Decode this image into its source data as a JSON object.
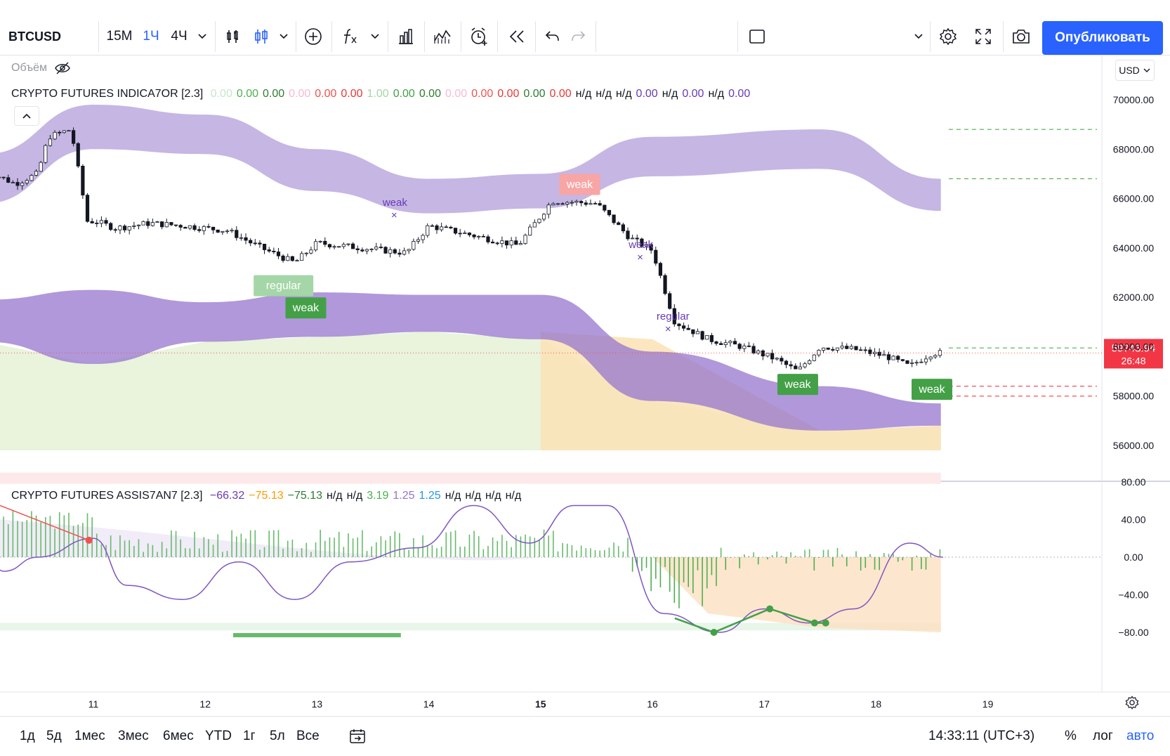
{
  "toolbar": {
    "symbol": "BTCUSD",
    "intervals": [
      {
        "label": "15M",
        "active": false
      },
      {
        "label": "1Ч",
        "active": true
      },
      {
        "label": "4Ч",
        "active": false
      }
    ],
    "publish_label": "Опубликовать",
    "icons": [
      "chevron-down-icon",
      "candles-icon",
      "chart-type-icon",
      "chevron-down-icon",
      "add-icon",
      "fx-icon",
      "chevron-down-icon",
      "templates-icon",
      "compare-icon",
      "alert-icon",
      "replay-icon",
      "undo-icon",
      "redo-icon",
      "layout-icon",
      "chevron-down-icon",
      "settings-icon",
      "fullscreen-icon",
      "camera-icon"
    ]
  },
  "chart": {
    "volume_label": "Объём",
    "currency": "USD",
    "indicator1": {
      "title": "CRYPTO FUTURES INDICA7OR [2.3]",
      "values": [
        {
          "text": "0.00",
          "color": "#c8e6c9"
        },
        {
          "text": "0.00",
          "color": "#4caf50"
        },
        {
          "text": "0.00",
          "color": "#2e7d32"
        },
        {
          "text": "0.00",
          "color": "#f8bbd0"
        },
        {
          "text": "0.00",
          "color": "#ef5350"
        },
        {
          "text": "0.00",
          "color": "#e53935"
        },
        {
          "text": "1.00",
          "color": "#a5d6a7"
        },
        {
          "text": "0.00",
          "color": "#43a047"
        },
        {
          "text": "0.00",
          "color": "#2e7d32"
        },
        {
          "text": "0.00",
          "color": "#f8bbd0"
        },
        {
          "text": "0.00",
          "color": "#ef5350"
        },
        {
          "text": "0.00",
          "color": "#e53935"
        },
        {
          "text": "0.00",
          "color": "#2e7d32"
        },
        {
          "text": "0.00",
          "color": "#e53935"
        },
        {
          "text": "н/д",
          "color": "#131722"
        },
        {
          "text": "н/д",
          "color": "#131722"
        },
        {
          "text": "н/д",
          "color": "#131722"
        },
        {
          "text": "0.00",
          "color": "#673ab7"
        },
        {
          "text": "н/д",
          "color": "#131722"
        },
        {
          "text": "0.00",
          "color": "#673ab7"
        },
        {
          "text": "н/д",
          "color": "#131722"
        },
        {
          "text": "0.00",
          "color": "#673ab7"
        }
      ]
    },
    "indicator2": {
      "title": "CRYPTO FUTURES ASSIS7AN7 [2.3]",
      "values": [
        {
          "text": "−66.32",
          "color": "#673ab7"
        },
        {
          "text": "−75.13",
          "color": "#ff9800"
        },
        {
          "text": "−75.13",
          "color": "#2e7d32"
        },
        {
          "text": "н/д",
          "color": "#131722"
        },
        {
          "text": "н/д",
          "color": "#131722"
        },
        {
          "text": "3.19",
          "color": "#4caf50"
        },
        {
          "text": "1.25",
          "color": "#9575cd"
        },
        {
          "text": "1.25",
          "color": "#2196f3"
        },
        {
          "text": "н/д",
          "color": "#131722"
        },
        {
          "text": "н/д",
          "color": "#131722"
        },
        {
          "text": "н/д",
          "color": "#131722"
        },
        {
          "text": "н/д",
          "color": "#131722"
        }
      ]
    },
    "price_axis": [
      "70000.00",
      "68000.00",
      "66000.00",
      "64000.00",
      "62000.00",
      "60000.00",
      "58000.00",
      "56000.00"
    ],
    "osc_axis": [
      "80.00",
      "40.00",
      "0.00",
      "−40.00",
      "−80.00"
    ],
    "time_axis": [
      "11",
      "12",
      "13",
      "14",
      "15",
      "16",
      "17",
      "18",
      "19"
    ],
    "last_price": "59743.94",
    "countdown": "26:48",
    "labels": {
      "weak": "weak",
      "regular": "regular"
    }
  },
  "chart_data": [
    {
      "type": "candlestick",
      "title": "CRYPTO FUTURES INDICA7OR [2.3]",
      "x_ticks": [
        "11",
        "12",
        "13",
        "14",
        "15",
        "16",
        "17",
        "18",
        "19"
      ],
      "ylim": [
        55500,
        71000
      ],
      "close_series": [
        {
          "day": 10.0,
          "value": 67200
        },
        {
          "day": 10.3,
          "value": 66600
        },
        {
          "day": 10.5,
          "value": 67000
        },
        {
          "day": 10.6,
          "value": 68500
        },
        {
          "day": 10.8,
          "value": 68800
        },
        {
          "day": 10.95,
          "value": 65000
        },
        {
          "day": 11.0,
          "value": 65100
        },
        {
          "day": 11.2,
          "value": 64800
        },
        {
          "day": 11.5,
          "value": 65000
        },
        {
          "day": 11.8,
          "value": 64900
        },
        {
          "day": 12.2,
          "value": 64700
        },
        {
          "day": 12.5,
          "value": 64000
        },
        {
          "day": 12.8,
          "value": 63400
        },
        {
          "day": 13.0,
          "value": 64200
        },
        {
          "day": 13.4,
          "value": 64000
        },
        {
          "day": 13.8,
          "value": 63800
        },
        {
          "day": 14.0,
          "value": 64900
        },
        {
          "day": 14.4,
          "value": 64500
        },
        {
          "day": 14.8,
          "value": 64100
        },
        {
          "day": 15.1,
          "value": 65900
        },
        {
          "day": 15.5,
          "value": 65800
        },
        {
          "day": 15.8,
          "value": 64400
        },
        {
          "day": 16.0,
          "value": 63900
        },
        {
          "day": 16.2,
          "value": 61000
        },
        {
          "day": 16.5,
          "value": 60300
        },
        {
          "day": 16.8,
          "value": 60000
        },
        {
          "day": 17.1,
          "value": 59500
        },
        {
          "day": 17.3,
          "value": 59000
        },
        {
          "day": 17.5,
          "value": 60000
        },
        {
          "day": 17.8,
          "value": 59900
        },
        {
          "day": 18.1,
          "value": 59600
        },
        {
          "day": 18.3,
          "value": 59200
        },
        {
          "day": 18.5,
          "value": 59744
        }
      ],
      "upper_band": {
        "top": [
          67800,
          69800,
          69400,
          68000,
          66800,
          67000,
          68500,
          68800,
          66800
        ],
        "bottom": [
          65800,
          68000,
          67800,
          66300,
          65400,
          65600,
          66900,
          67200,
          65500
        ]
      },
      "lower_band": {
        "top": [
          61900,
          62300,
          61800,
          62200,
          62100,
          62100,
          59800,
          58400,
          57700
        ],
        "bottom": [
          60200,
          59300,
          60200,
          60400,
          60600,
          60300,
          57800,
          56600,
          56800
        ]
      },
      "annotations": [
        {
          "text": "weak",
          "day": 12.9,
          "value": 61600,
          "kind": "bull"
        },
        {
          "text": "regular",
          "day": 12.7,
          "value": 62500,
          "kind": "bull-faded"
        },
        {
          "text": "weak",
          "day": 13.7,
          "value": 65300,
          "kind": "purple"
        },
        {
          "text": "weak",
          "day": 15.35,
          "value": 66600,
          "kind": "bear"
        },
        {
          "text": "weak",
          "day": 15.9,
          "value": 63600,
          "kind": "purple"
        },
        {
          "text": "regular",
          "day": 16.15,
          "value": 60700,
          "kind": "purple"
        },
        {
          "text": "weak",
          "day": 17.3,
          "value": 58500,
          "kind": "bull"
        },
        {
          "text": "weak",
          "day": 18.5,
          "value": 58300,
          "kind": "bull"
        }
      ],
      "last_price": 59743.94
    },
    {
      "type": "line",
      "title": "CRYPTO FUTURES ASSIS7AN7 [2.3]",
      "ylim": [
        -95,
        95
      ],
      "oscillator": [
        {
          "day": 10.0,
          "value": 10
        },
        {
          "day": 10.2,
          "value": -15
        },
        {
          "day": 10.5,
          "value": 0
        },
        {
          "day": 11.0,
          "value": 20
        },
        {
          "day": 11.3,
          "value": -30
        },
        {
          "day": 11.8,
          "value": -45
        },
        {
          "day": 12.3,
          "value": -5
        },
        {
          "day": 12.8,
          "value": -45
        },
        {
          "day": 13.3,
          "value": -5
        },
        {
          "day": 13.9,
          "value": 10
        },
        {
          "day": 14.4,
          "value": 55
        },
        {
          "day": 14.9,
          "value": 15
        },
        {
          "day": 15.3,
          "value": 55
        },
        {
          "day": 15.6,
          "value": 55
        },
        {
          "day": 16.1,
          "value": -60
        },
        {
          "day": 16.6,
          "value": -80
        },
        {
          "day": 17.0,
          "value": -55
        },
        {
          "day": 17.4,
          "value": -70
        },
        {
          "day": 17.8,
          "value": -55
        },
        {
          "day": 18.3,
          "value": 15
        },
        {
          "day": 18.6,
          "value": 0
        }
      ]
    }
  ]
}
